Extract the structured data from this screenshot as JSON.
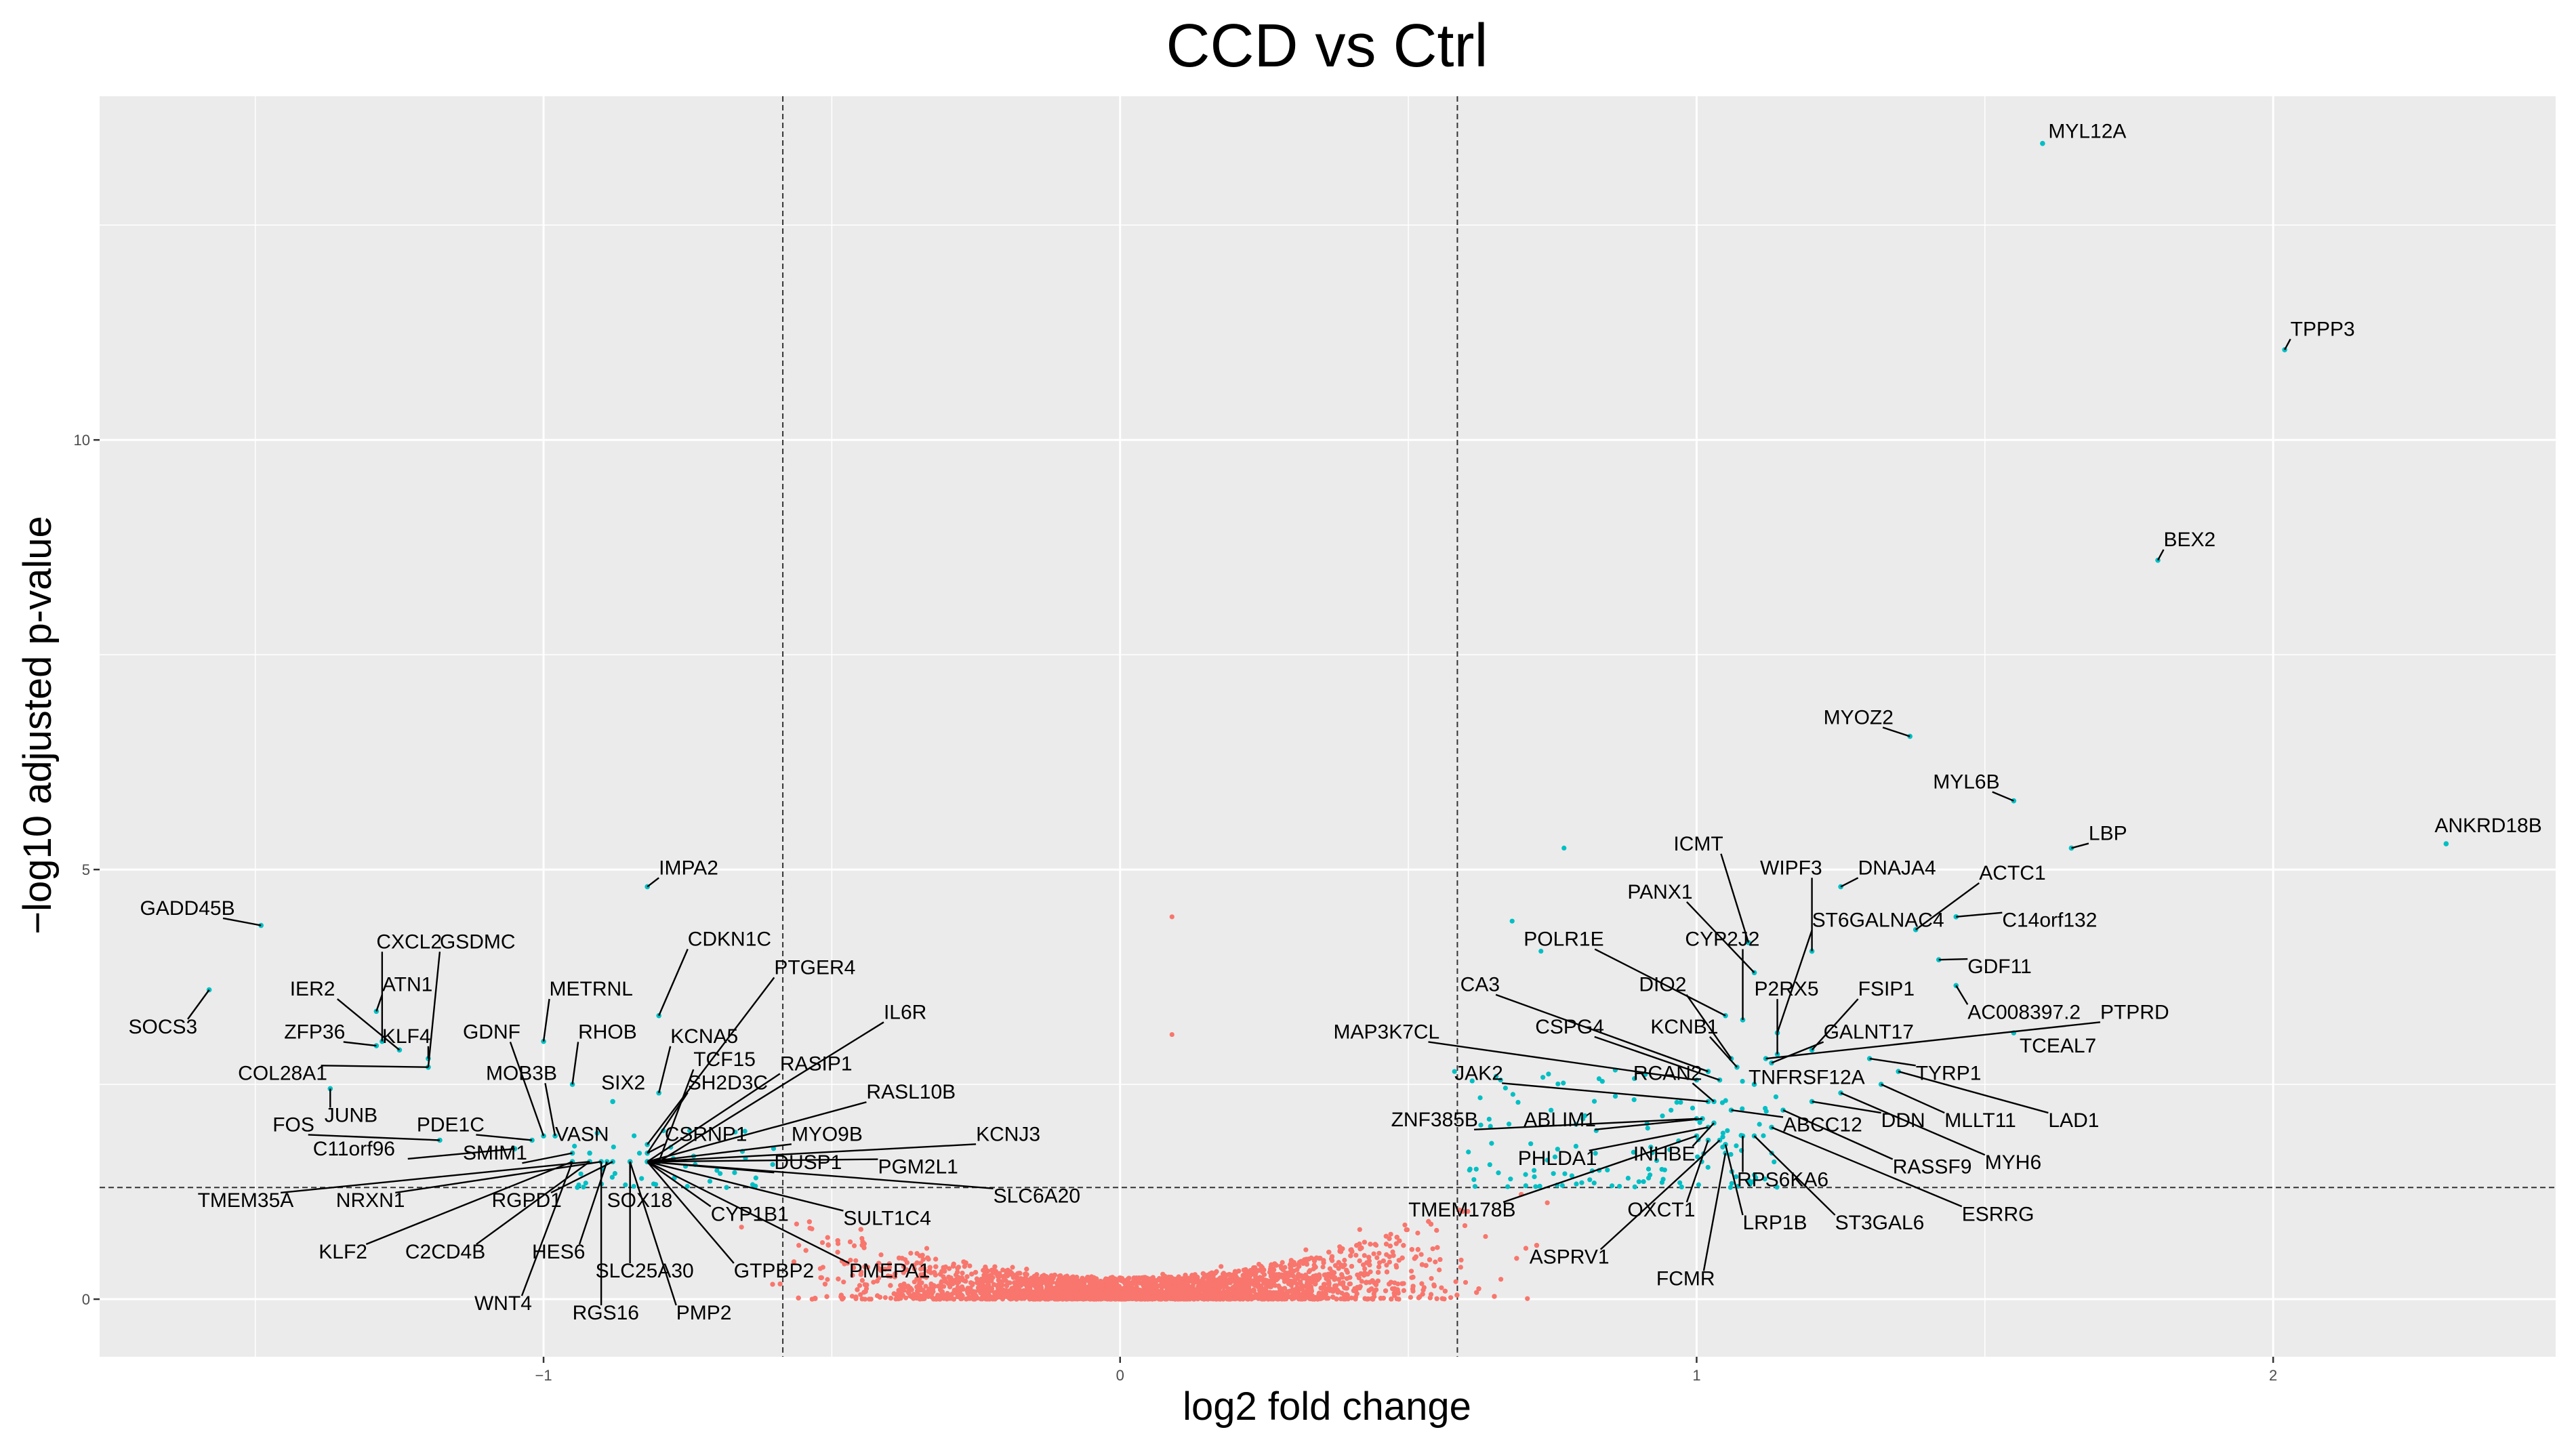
{
  "chart_data": {
    "type": "scatter",
    "title": "CCD vs Ctrl",
    "xlabel": "log2 fold change",
    "ylabel": "−log10 adjusted p-value",
    "xlim": [
      -1.77,
      2.49
    ],
    "ylim": [
      -0.67,
      14.0
    ],
    "x_ticks": [
      -1,
      0,
      1,
      2
    ],
    "x_tick_labels": [
      "−1",
      "0",
      "1",
      "2"
    ],
    "y_ticks": [
      0,
      5,
      10
    ],
    "y_tick_labels": [
      "0",
      "5",
      "10"
    ],
    "thresholds": {
      "log2fc": [
        -0.585,
        0.585
      ],
      "neg_log10_padj": 1.3
    },
    "colors": {
      "panel": "#ebebeb",
      "grid": "#ffffff",
      "not_significant": "#f8766d",
      "significant": "#00bfc4",
      "threshold_line": "#333333"
    },
    "series": [
      {
        "name": "significant",
        "points": [
          {
            "gene": "MYL12A",
            "x": 1.6,
            "y": 13.45,
            "lx": 1.61,
            "ly": 13.6
          },
          {
            "gene": "TPPP3",
            "x": 2.02,
            "y": 11.05,
            "lx": 2.03,
            "ly": 11.3
          },
          {
            "gene": "BEX2",
            "x": 1.8,
            "y": 8.6,
            "lx": 1.81,
            "ly": 8.85
          },
          {
            "gene": "ANKRD18B",
            "x": 2.3,
            "y": 5.3,
            "lx": 2.28,
            "ly": 5.52
          },
          {
            "gene": "MYOZ2",
            "x": 1.37,
            "y": 6.55,
            "lx": 1.22,
            "ly": 6.78
          },
          {
            "gene": "MYL6B",
            "x": 1.55,
            "y": 5.8,
            "lx": 1.41,
            "ly": 6.03
          },
          {
            "gene": "LBP",
            "x": 1.65,
            "y": 5.25,
            "lx": 1.68,
            "ly": 5.43
          },
          {
            "gene": "IMPA2",
            "x": -0.82,
            "y": 4.8,
            "lx": -0.8,
            "ly": 5.03
          },
          {
            "gene": "GADD45B",
            "x": -1.49,
            "y": 4.35,
            "lx": -1.7,
            "ly": 4.56
          },
          {
            "gene": "ICMT",
            "x": 1.09,
            "y": 4.15,
            "lx": 0.96,
            "ly": 5.31
          },
          {
            "gene": "WIPF3",
            "x": 1.2,
            "y": 4.05,
            "lx": 1.11,
            "ly": 5.03
          },
          {
            "gene": "DNAJA4",
            "x": 1.25,
            "y": 4.8,
            "lx": 1.28,
            "ly": 5.03
          },
          {
            "gene": "ACTC1",
            "x": 1.38,
            "y": 4.3,
            "lx": 1.49,
            "ly": 4.97
          },
          {
            "gene": "PANX1",
            "x": 1.1,
            "y": 3.8,
            "lx": 0.88,
            "ly": 4.75
          },
          {
            "gene": "C14orf132",
            "x": 1.45,
            "y": 4.45,
            "lx": 1.53,
            "ly": 4.42
          },
          {
            "gene": "ST6GALNAC4",
            "x": 1.14,
            "y": 3.1,
            "lx": 1.2,
            "ly": 4.42
          },
          {
            "gene": "CYP2J2",
            "x": 1.08,
            "y": 3.25,
            "lx": 0.98,
            "ly": 4.2
          },
          {
            "gene": "POLR1E",
            "x": 1.05,
            "y": 3.3,
            "lx": 0.7,
            "ly": 4.2
          },
          {
            "gene": "GDF11",
            "x": 1.42,
            "y": 3.95,
            "lx": 1.47,
            "ly": 3.88
          },
          {
            "gene": "DIO2",
            "x": 1.06,
            "y": 2.8,
            "lx": 0.9,
            "ly": 3.67
          },
          {
            "gene": "P2RX5",
            "x": 1.14,
            "y": 2.85,
            "lx": 1.1,
            "ly": 3.62
          },
          {
            "gene": "FSIP1",
            "x": 1.2,
            "y": 2.9,
            "lx": 1.28,
            "ly": 3.62
          },
          {
            "gene": "CA3",
            "x": 1.02,
            "y": 2.65,
            "lx": 0.59,
            "ly": 3.67
          },
          {
            "gene": "AC008397.2",
            "x": 1.45,
            "y": 3.65,
            "lx": 1.47,
            "ly": 3.35
          },
          {
            "gene": "PTPRD",
            "x": 1.12,
            "y": 2.8,
            "lx": 1.7,
            "ly": 3.35
          },
          {
            "gene": "CSPG4",
            "x": 1.04,
            "y": 2.55,
            "lx": 0.72,
            "ly": 3.18
          },
          {
            "gene": "KCNB1",
            "x": 1.07,
            "y": 2.7,
            "lx": 0.92,
            "ly": 3.18
          },
          {
            "gene": "GALNT17",
            "x": 1.13,
            "y": 2.75,
            "lx": 1.22,
            "ly": 3.12
          },
          {
            "gene": "MAP3K7CL",
            "x": 1.0,
            "y": 2.55,
            "lx": 0.37,
            "ly": 3.12
          },
          {
            "gene": "TCEAL7",
            "x": 1.55,
            "y": 3.1,
            "lx": 1.56,
            "ly": 2.96
          },
          {
            "gene": "TYRP1",
            "x": 1.3,
            "y": 2.8,
            "lx": 1.38,
            "ly": 2.64
          },
          {
            "gene": "RCAN2",
            "x": 1.03,
            "y": 2.3,
            "lx": 0.89,
            "ly": 2.64
          },
          {
            "gene": "TNFRSF12A",
            "x": 1.1,
            "y": 2.5,
            "lx": 1.09,
            "ly": 2.59
          },
          {
            "gene": "JAK2",
            "x": 1.02,
            "y": 2.3,
            "lx": 0.58,
            "ly": 2.64
          },
          {
            "gene": "LAD1",
            "x": 1.35,
            "y": 2.65,
            "lx": 1.61,
            "ly": 2.09
          },
          {
            "gene": "MLLT11",
            "x": 1.32,
            "y": 2.5,
            "lx": 1.43,
            "ly": 2.09
          },
          {
            "gene": "DDN",
            "x": 1.2,
            "y": 2.3,
            "lx": 1.32,
            "ly": 2.09
          },
          {
            "gene": "ZNF385B",
            "x": 1.0,
            "y": 2.1,
            "lx": 0.47,
            "ly": 2.1
          },
          {
            "gene": "ABLIM1",
            "x": 1.01,
            "y": 2.1,
            "lx": 0.7,
            "ly": 2.1
          },
          {
            "gene": "ABCC12",
            "x": 1.06,
            "y": 2.2,
            "lx": 1.15,
            "ly": 2.04
          },
          {
            "gene": "PHLDA1",
            "x": 1.02,
            "y": 2.0,
            "lx": 0.69,
            "ly": 1.65
          },
          {
            "gene": "INHBE",
            "x": 1.03,
            "y": 2.05,
            "lx": 0.89,
            "ly": 1.7
          },
          {
            "gene": "MYH6",
            "x": 1.25,
            "y": 2.4,
            "lx": 1.5,
            "ly": 1.6
          },
          {
            "gene": "RASSF9",
            "x": 1.15,
            "y": 2.2,
            "lx": 1.34,
            "ly": 1.55
          },
          {
            "gene": "RPS6KA6",
            "x": 1.08,
            "y": 1.9,
            "lx": 1.07,
            "ly": 1.4
          },
          {
            "gene": "ESRRG",
            "x": 1.13,
            "y": 2.0,
            "lx": 1.46,
            "ly": 1.0
          },
          {
            "gene": "TMEM178B",
            "x": 1.0,
            "y": 1.9,
            "lx": 0.5,
            "ly": 1.05
          },
          {
            "gene": "OXCT1",
            "x": 1.02,
            "y": 1.85,
            "lx": 0.88,
            "ly": 1.05
          },
          {
            "gene": "LRP1B",
            "x": 1.05,
            "y": 1.8,
            "lx": 1.08,
            "ly": 0.9
          },
          {
            "gene": "ST3GAL6",
            "x": 1.1,
            "y": 1.9,
            "lx": 1.24,
            "ly": 0.9
          },
          {
            "gene": "ASPRV1",
            "x": 1.04,
            "y": 1.85,
            "lx": 0.71,
            "ly": 0.5
          },
          {
            "gene": "FCMR",
            "x": 1.05,
            "y": 1.7,
            "lx": 0.93,
            "ly": 0.25
          },
          {
            "gene": "CXCL2",
            "x": -1.28,
            "y": 3.0,
            "lx": -1.29,
            "ly": 4.17
          },
          {
            "gene": "GSDMC",
            "x": -1.2,
            "y": 2.7,
            "lx": -1.18,
            "ly": 4.17
          },
          {
            "gene": "CDKN1C",
            "x": -0.8,
            "y": 3.3,
            "lx": -0.75,
            "ly": 4.2
          },
          {
            "gene": "PTGER4",
            "x": -0.82,
            "y": 1.8,
            "lx": -0.6,
            "ly": 3.87
          },
          {
            "gene": "SOCS3",
            "x": -1.58,
            "y": 3.6,
            "lx": -1.72,
            "ly": 3.18
          },
          {
            "gene": "IER2",
            "x": -1.25,
            "y": 2.9,
            "lx": -1.44,
            "ly": 3.62
          },
          {
            "gene": "ATN1",
            "x": -1.29,
            "y": 3.35,
            "lx": -1.28,
            "ly": 3.67
          },
          {
            "gene": "METRNL",
            "x": -1.0,
            "y": 3.0,
            "lx": -0.99,
            "ly": 3.62
          },
          {
            "gene": "ZFP36",
            "x": -1.29,
            "y": 2.95,
            "lx": -1.45,
            "ly": 3.12
          },
          {
            "gene": "KLF4",
            "x": -1.2,
            "y": 2.8,
            "lx": -1.28,
            "ly": 3.07
          },
          {
            "gene": "GDNF",
            "x": -1.0,
            "y": 1.9,
            "lx": -1.14,
            "ly": 3.12
          },
          {
            "gene": "RHOB",
            "x": -0.95,
            "y": 2.5,
            "lx": -0.94,
            "ly": 3.12
          },
          {
            "gene": "KCNA5",
            "x": -0.8,
            "y": 2.4,
            "lx": -0.78,
            "ly": 3.07
          },
          {
            "gene": "IL6R",
            "x": -0.8,
            "y": 1.6,
            "lx": -0.41,
            "ly": 3.35
          },
          {
            "gene": "TCF15",
            "x": -0.8,
            "y": 1.6,
            "lx": -0.74,
            "ly": 2.8
          },
          {
            "gene": "RASIP1",
            "x": -0.82,
            "y": 1.6,
            "lx": -0.59,
            "ly": 2.75
          },
          {
            "gene": "COL28A1",
            "x": -1.2,
            "y": 2.7,
            "lx": -1.53,
            "ly": 2.64
          },
          {
            "gene": "MOB3B",
            "x": -0.98,
            "y": 1.9,
            "lx": -1.1,
            "ly": 2.64
          },
          {
            "gene": "SIX2",
            "x": -0.88,
            "y": 2.3,
            "lx": -0.9,
            "ly": 2.53
          },
          {
            "gene": "SH2D3C",
            "x": -0.82,
            "y": 1.7,
            "lx": -0.75,
            "ly": 2.53
          },
          {
            "gene": "RASL10B",
            "x": -0.82,
            "y": 1.6,
            "lx": -0.44,
            "ly": 2.42
          },
          {
            "gene": "JUNB",
            "x": -1.37,
            "y": 2.45,
            "lx": -1.38,
            "ly": 2.15
          },
          {
            "gene": "FOS",
            "x": -1.18,
            "y": 1.85,
            "lx": -1.47,
            "ly": 2.04
          },
          {
            "gene": "PDE1C",
            "x": -1.02,
            "y": 1.85,
            "lx": -1.22,
            "ly": 2.04
          },
          {
            "gene": "VASN",
            "x": -0.92,
            "y": 1.7,
            "lx": -0.98,
            "ly": 1.93
          },
          {
            "gene": "CSRNP1",
            "x": -0.82,
            "y": 1.7,
            "lx": -0.79,
            "ly": 1.93
          },
          {
            "gene": "MYO9B",
            "x": -0.82,
            "y": 1.6,
            "lx": -0.57,
            "ly": 1.93
          },
          {
            "gene": "KCNJ3",
            "x": -0.82,
            "y": 1.6,
            "lx": -0.25,
            "ly": 1.93
          },
          {
            "gene": "C11orf96",
            "x": -1.05,
            "y": 1.75,
            "lx": -1.4,
            "ly": 1.76
          },
          {
            "gene": "SMIM1",
            "x": -0.95,
            "y": 1.7,
            "lx": -1.14,
            "ly": 1.71
          },
          {
            "gene": "DUSP1",
            "x": -0.82,
            "y": 1.6,
            "lx": -0.6,
            "ly": 1.6
          },
          {
            "gene": "PGM2L1",
            "x": -0.82,
            "y": 1.6,
            "lx": -0.42,
            "ly": 1.55
          },
          {
            "gene": "SLC6A20",
            "x": -0.82,
            "y": 1.6,
            "lx": -0.22,
            "ly": 1.21
          },
          {
            "gene": "TMEM35A",
            "x": -0.92,
            "y": 1.6,
            "lx": -1.6,
            "ly": 1.16
          },
          {
            "gene": "NRXN1",
            "x": -0.9,
            "y": 1.6,
            "lx": -1.36,
            "ly": 1.16
          },
          {
            "gene": "RGPD1",
            "x": -0.88,
            "y": 1.6,
            "lx": -1.09,
            "ly": 1.16
          },
          {
            "gene": "SOX18",
            "x": -0.85,
            "y": 1.6,
            "lx": -0.89,
            "ly": 1.16
          },
          {
            "gene": "CYP1B1",
            "x": -0.82,
            "y": 1.6,
            "lx": -0.71,
            "ly": 1.0
          },
          {
            "gene": "SULT1C4",
            "x": -0.82,
            "y": 1.6,
            "lx": -0.48,
            "ly": 0.95
          },
          {
            "gene": "KLF2",
            "x": -0.95,
            "y": 1.6,
            "lx": -1.39,
            "ly": 0.56
          },
          {
            "gene": "C2CD4B",
            "x": -0.92,
            "y": 1.6,
            "lx": -1.24,
            "ly": 0.56
          },
          {
            "gene": "HES6",
            "x": -0.89,
            "y": 1.6,
            "lx": -1.02,
            "ly": 0.56
          },
          {
            "gene": "GTPBP2",
            "x": -0.82,
            "y": 1.6,
            "lx": -0.67,
            "ly": 0.34
          },
          {
            "gene": "PMEPA1",
            "x": -0.82,
            "y": 1.6,
            "lx": -0.47,
            "ly": 0.34
          },
          {
            "gene": "SLC25A30",
            "x": -0.85,
            "y": 1.6,
            "lx": -0.91,
            "ly": 0.34
          },
          {
            "gene": "WNT4",
            "x": -0.95,
            "y": 1.6,
            "lx": -1.12,
            "ly": -0.04
          },
          {
            "gene": "RGS16",
            "x": -0.9,
            "y": 1.6,
            "lx": -0.95,
            "ly": -0.15
          },
          {
            "gene": "PMP2",
            "x": -0.85,
            "y": 1.6,
            "lx": -0.77,
            "ly": -0.15
          }
        ]
      },
      {
        "name": "not_significant",
        "generated": "dense cloud of several thousand non-significant genes concentrated near x=0, y=0 and rising toward the thresholds"
      }
    ]
  }
}
